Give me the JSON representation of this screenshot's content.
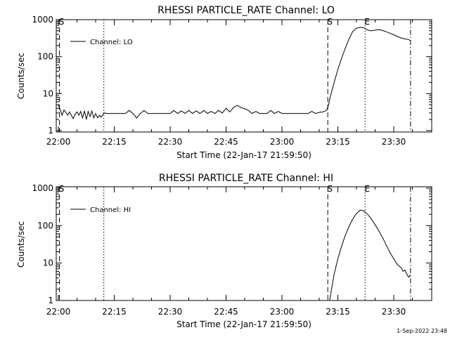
{
  "chart_data": [
    {
      "type": "line",
      "title": "RHESSI PARTICLE_RATE Channel: LO",
      "xlabel": "Start Time (22-Jan-17 21:59:50)",
      "ylabel": "Counts/sec",
      "yscale": "log",
      "ylim": [
        0.9,
        1000
      ],
      "xlim": [
        "22:00",
        "23:38"
      ],
      "x_ticks": [
        "22:00",
        "22:15",
        "22:30",
        "22:45",
        "23:00",
        "23:15",
        "23:30"
      ],
      "y_ticks": [
        "1",
        "10",
        "100",
        "1000"
      ],
      "legend": {
        "label": "Channel: LO",
        "position": "top-left"
      },
      "markers": [
        {
          "label": "S",
          "time": "22:00.3",
          "style": "dashed"
        },
        {
          "label": "",
          "time": "22:12.2",
          "style": "dotted"
        },
        {
          "label": "S",
          "time": "23:12.3",
          "style": "dashed"
        },
        {
          "label": "E",
          "time": "23:22.3",
          "style": "dotted"
        },
        {
          "label": "",
          "time": "23:34.5",
          "style": "dashdot"
        }
      ],
      "series": [
        {
          "name": "Channel: LO",
          "x_minutes": [
            0,
            0.5,
            1,
            1.5,
            2,
            2.5,
            3,
            3.5,
            4,
            4.5,
            5,
            5.5,
            6,
            6.5,
            7,
            7.5,
            8,
            8.5,
            9,
            9.5,
            10,
            10.5,
            11,
            11.5,
            12,
            12.5,
            13,
            14,
            15,
            16,
            17,
            18,
            19,
            20,
            21,
            22,
            23,
            24,
            25,
            26,
            27,
            28,
            29,
            30,
            31,
            32,
            33,
            34,
            35,
            36,
            37,
            38,
            39,
            40,
            41,
            42,
            43,
            44,
            45,
            46,
            47,
            48,
            49,
            50,
            51,
            52,
            53,
            54,
            55,
            56,
            57,
            58,
            59,
            60,
            61,
            62,
            63,
            64,
            65,
            66,
            67,
            68,
            69,
            70,
            71,
            72,
            72.5,
            73,
            74,
            75,
            76,
            77,
            78,
            79,
            80,
            81,
            82,
            82.5,
            83,
            84,
            85,
            86,
            87,
            88,
            89,
            90,
            91,
            92,
            93,
            94,
            94.5
          ],
          "values": [
            5,
            3.6,
            2.6,
            3.6,
            3.1,
            2.6,
            3.2,
            2.6,
            2.1,
            2.8,
            3.2,
            2.6,
            3.3,
            2.2,
            3.4,
            2.0,
            3.3,
            2.4,
            3.4,
            2.2,
            2.9,
            2.2,
            2.6,
            2.3,
            2.8,
            3.0,
            2.9,
            2.9,
            2.9,
            2.9,
            2.9,
            2.9,
            3.5,
            2.9,
            2.2,
            2.9,
            3.5,
            2.9,
            2.9,
            2.9,
            2.9,
            2.9,
            2.9,
            2.9,
            3.5,
            2.9,
            3.4,
            2.9,
            3.5,
            2.9,
            3.4,
            2.9,
            3.5,
            2.9,
            3.3,
            2.9,
            3.5,
            3.0,
            4.0,
            3.2,
            4.2,
            4.8,
            4.2,
            3.9,
            3.5,
            2.9,
            3.3,
            2.9,
            2.9,
            2.9,
            3.5,
            2.9,
            3.3,
            2.9,
            2.9,
            2.9,
            2.9,
            2.9,
            2.9,
            2.9,
            2.9,
            3.3,
            2.9,
            3.1,
            3.2,
            3.5,
            5.0,
            8.5,
            20,
            45,
            90,
            170,
            300,
            480,
            590,
            620,
            600,
            560,
            520,
            500,
            520,
            540,
            510,
            470,
            430,
            390,
            350,
            320,
            300,
            290,
            270
          ]
        }
      ]
    },
    {
      "type": "line",
      "title": "RHESSI PARTICLE_RATE Channel: HI",
      "xlabel": "Start Time (22-Jan-17 21:59:50)",
      "ylabel": "Counts/sec",
      "yscale": "log",
      "ylim": [
        0.9,
        1000
      ],
      "xlim": [
        "22:00",
        "23:38"
      ],
      "x_ticks": [
        "22:00",
        "22:15",
        "22:30",
        "22:45",
        "23:00",
        "23:15",
        "23:30"
      ],
      "y_ticks": [
        "1",
        "10",
        "100",
        "1000"
      ],
      "legend": {
        "label": "Channel: HI",
        "position": "top-left"
      },
      "markers": [
        {
          "label": "S",
          "time": "22:00.3",
          "style": "dashed"
        },
        {
          "label": "",
          "time": "22:12.2",
          "style": "dotted"
        },
        {
          "label": "S",
          "time": "23:12.3",
          "style": "dashed"
        },
        {
          "label": "E",
          "time": "23:22.3",
          "style": "dotted"
        },
        {
          "label": "",
          "time": "23:34.5",
          "style": "dashdot"
        }
      ],
      "series": [
        {
          "name": "Channel: HI",
          "x_minutes": [
            72.8,
            73.3,
            74,
            75,
            76,
            77,
            78,
            79,
            80,
            81,
            82,
            83,
            84,
            85,
            86,
            87,
            88,
            89,
            90,
            91,
            92,
            92.5,
            93,
            93.5,
            94,
            94.5
          ],
          "values": [
            1.0,
            2.0,
            5.0,
            13,
            28,
            55,
            95,
            150,
            210,
            260,
            245,
            200,
            150,
            105,
            72,
            48,
            30,
            19,
            13,
            9,
            7.5,
            6.0,
            6.5,
            5.0,
            4.2,
            4.8
          ]
        }
      ]
    }
  ],
  "footer": {
    "date": "1-Sep-2022 23:48"
  }
}
